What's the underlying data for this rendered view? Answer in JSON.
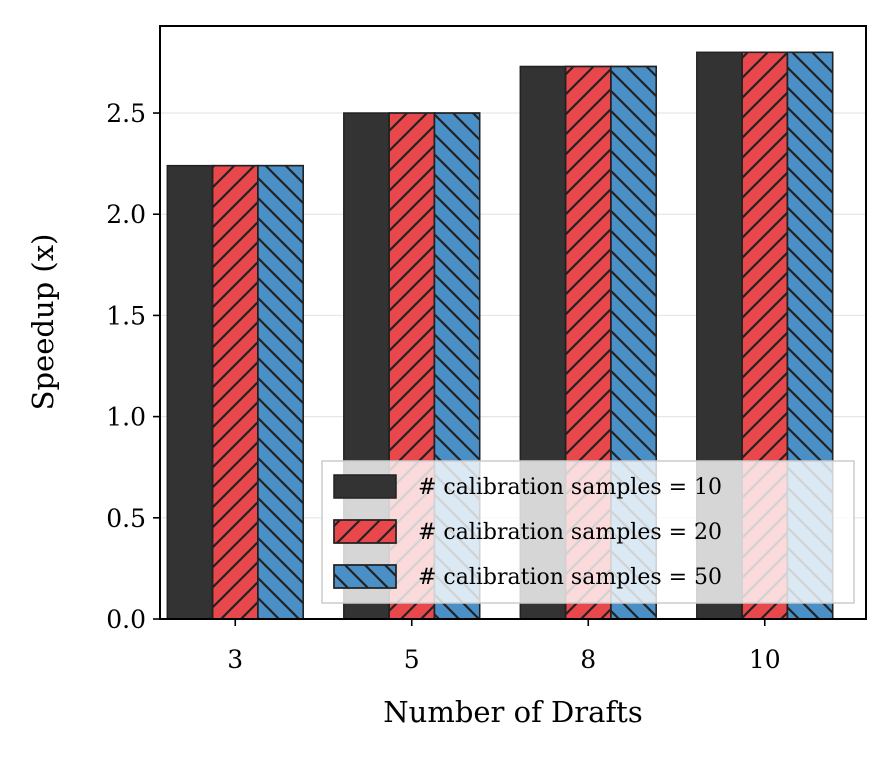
{
  "chart_data": {
    "type": "bar",
    "title": "",
    "xlabel": "Number of Drafts",
    "ylabel": "Speedup (x)",
    "categories": [
      "3",
      "5",
      "8",
      "10"
    ],
    "ylim": [
      0,
      2.93
    ],
    "yticks": [
      0.0,
      0.5,
      1.0,
      1.5,
      2.0,
      2.5
    ],
    "ytick_labels": [
      "0.0",
      "0.5",
      "1.0",
      "1.5",
      "2.0",
      "2.5"
    ],
    "grid": "horizontal",
    "legend_position": "bottom-right",
    "series": [
      {
        "name": "# calibration samples = 10",
        "values": [
          2.24,
          2.5,
          2.73,
          2.8
        ],
        "color": "#333333",
        "hatch": "none"
      },
      {
        "name": "# calibration samples = 20",
        "values": [
          2.24,
          2.5,
          2.73,
          2.8
        ],
        "color": "#e8474b",
        "hatch": "forward-diagonal"
      },
      {
        "name": "# calibration samples = 50",
        "values": [
          2.24,
          2.5,
          2.73,
          2.8
        ],
        "color": "#4a8fc6",
        "hatch": "back-diagonal"
      }
    ]
  }
}
